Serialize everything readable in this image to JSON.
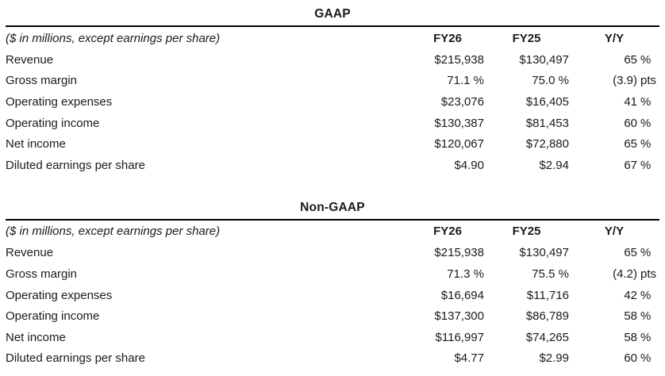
{
  "page": {
    "background_color": "#ffffff",
    "text_color": "#1a1a1a",
    "rule_color": "#000000"
  },
  "tables": [
    {
      "title": "GAAP",
      "note": "($ in millions, except earnings per share)",
      "columns": [
        "FY26",
        "FY25",
        "Y/Y"
      ],
      "rows": [
        {
          "label": "Revenue",
          "fy26": "$215,938",
          "fy25": "$130,497",
          "yoy_num": "65",
          "yoy_unit": "%"
        },
        {
          "label": "Gross margin",
          "fy26": "71.1 %",
          "fy25": "75.0 %",
          "yoy_num": "(3.9)",
          "yoy_unit": "pts"
        },
        {
          "label": "Operating expenses",
          "fy26": "$23,076",
          "fy25": "$16,405",
          "yoy_num": "41",
          "yoy_unit": "%"
        },
        {
          "label": "Operating income",
          "fy26": "$130,387",
          "fy25": "$81,453",
          "yoy_num": "60",
          "yoy_unit": "%"
        },
        {
          "label": "Net income",
          "fy26": "$120,067",
          "fy25": "$72,880",
          "yoy_num": "65",
          "yoy_unit": "%"
        },
        {
          "label": "Diluted earnings per share",
          "fy26": "$4.90",
          "fy25": "$2.94",
          "yoy_num": "67",
          "yoy_unit": "%"
        }
      ]
    },
    {
      "title": "Non-GAAP",
      "note": "($ in millions, except earnings per share)",
      "columns": [
        "FY26",
        "FY25",
        "Y/Y"
      ],
      "rows": [
        {
          "label": "Revenue",
          "fy26": "$215,938",
          "fy25": "$130,497",
          "yoy_num": "65",
          "yoy_unit": "%"
        },
        {
          "label": "Gross margin",
          "fy26": "71.3 %",
          "fy25": "75.5 %",
          "yoy_num": "(4.2)",
          "yoy_unit": "pts"
        },
        {
          "label": "Operating expenses",
          "fy26": "$16,694",
          "fy25": "$11,716",
          "yoy_num": "42",
          "yoy_unit": "%"
        },
        {
          "label": "Operating income",
          "fy26": "$137,300",
          "fy25": "$86,789",
          "yoy_num": "58",
          "yoy_unit": "%"
        },
        {
          "label": "Net income",
          "fy26": "$116,997",
          "fy25": "$74,265",
          "yoy_num": "58",
          "yoy_unit": "%"
        },
        {
          "label": "Diluted earnings per share",
          "fy26": "$4.77",
          "fy25": "$2.99",
          "yoy_num": "60",
          "yoy_unit": "%"
        }
      ]
    }
  ]
}
